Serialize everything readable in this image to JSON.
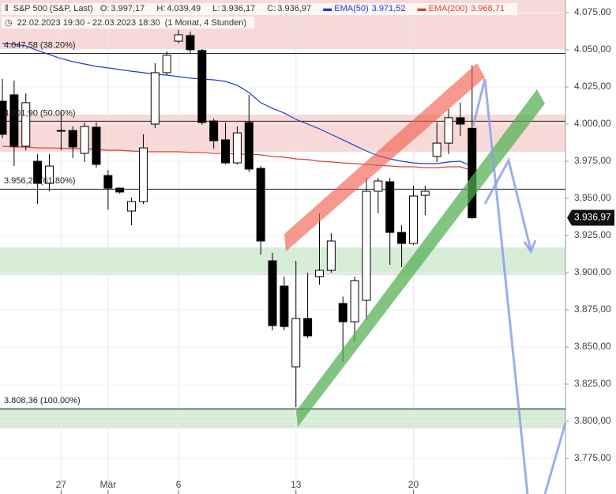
{
  "chart_data": {
    "type": "candlestick",
    "title": "S&P 500 (S&P, Last)",
    "ohlc_labels": [
      {
        "key": "O:",
        "text": "3.997,17"
      },
      {
        "key": "H:",
        "text": "4.039,49"
      },
      {
        "key": "L:",
        "text": "3.936,17"
      },
      {
        "key": "C:",
        "text": "3.936,97"
      }
    ],
    "subtitle": "22.02.2023 19:30 - 22.03.2023 18:30",
    "period": "(1 Monat, 4 Stunden)",
    "categories": [
      null,
      null,
      null,
      null,
      null,
      "27",
      null,
      null,
      null,
      "Mär",
      null,
      null,
      null,
      null,
      null,
      "6",
      null,
      null,
      null,
      null,
      null,
      null,
      null,
      null,
      null,
      "13",
      null,
      null,
      null,
      null,
      null,
      null,
      null,
      null,
      null,
      "20",
      null,
      null,
      null,
      null,
      null,
      null,
      null,
      null,
      null,
      null,
      null,
      null
    ],
    "open": [
      4015.4,
      4019.7,
      3985.1,
      3975.0,
      3960.1,
      3995.2,
      3995.7,
      3980.3,
      3997.9,
      3965.4,
      3956.9,
      3941.5,
      3947.9,
      4000.0,
      4034.6,
      4055.8,
      4059.6,
      4049.5,
      4002.1,
      3989.4,
      3973.9,
      4001.1,
      3970.2,
      3908.0,
      3891.0,
      3836.7,
      3869.2,
      3897.4,
      3901.6,
      3879.3,
      3867.0,
      3881.4,
      3954.8,
      3961.2,
      3927.1,
      3919.7,
      3952.1,
      3978.2,
      3987.2,
      4004.3,
      3997.17,
      null,
      null,
      null,
      null,
      null,
      null,
      null
    ],
    "high": [
      4030.3,
      4029.3,
      4020.7,
      3979.8,
      3979.8,
      4009.1,
      3998.4,
      4001.1,
      4001.1,
      3969.1,
      3957.5,
      3950.5,
      3993.1,
      4041.0,
      4048.9,
      4063.3,
      4062.2,
      4050.5,
      4003.7,
      4001.1,
      3998.4,
      4019.7,
      3971.8,
      3913.3,
      3897.4,
      3908.0,
      3900.0,
      3939.9,
      3926.6,
      3884.0,
      3897.4,
      3963.8,
      3963.8,
      3963.8,
      3931.9,
      3958.5,
      3958.5,
      4001.1,
      4010.1,
      4014.4,
      4039.49,
      null,
      null,
      null,
      null,
      null,
      null,
      null
    ],
    "low": [
      3990.4,
      3971.8,
      3982.4,
      3946.3,
      3954.8,
      3982.4,
      3977.1,
      3974.5,
      3970.7,
      3942.5,
      3953.2,
      3931.9,
      3946.3,
      3997.3,
      4033.0,
      4054.3,
      4047.3,
      3999.5,
      3983.5,
      3972.9,
      3972.9,
      3967.6,
      3912.2,
      3861.2,
      3861.2,
      3809.6,
      3855.9,
      3892.0,
      3900.0,
      3839.9,
      3853.7,
      3868.1,
      3939.9,
      3905.3,
      3903.7,
      3918.6,
      3938.8,
      3974.5,
      3979.8,
      3992.0,
      3936.17,
      null,
      null,
      null,
      null,
      null,
      null,
      null
    ],
    "close": [
      3993.1,
      3985.1,
      4014.4,
      3960.1,
      3971.8,
      3995.7,
      3984.6,
      3998.4,
      3972.9,
      3956.9,
      3954.3,
      3947.9,
      3984.0,
      4034.6,
      4046.3,
      4060.1,
      4050.0,
      4001.1,
      3988.8,
      3973.9,
      3994.1,
      3969.7,
      3921.3,
      3864.4,
      3863.8,
      3869.2,
      3857.5,
      3901.6,
      3921.3,
      3867.0,
      3894.7,
      3954.8,
      3961.7,
      3927.1,
      3919.7,
      3951.6,
      3954.8,
      3987.2,
      4004.3,
      4000.0,
      3936.97,
      null,
      null,
      null,
      null,
      null,
      null,
      null
    ],
    "up_color": "#ffffff",
    "down_color": "#000000",
    "series": [
      {
        "name": "EMA(50)",
        "color": "#1f3bd6",
        "value_label": "3.971,52",
        "values": [
          4054.3,
          4053.7,
          4052.7,
          4049.5,
          4046.8,
          4044.1,
          4042.0,
          4040.4,
          4038.8,
          4037.8,
          4036.7,
          4035.6,
          4034.6,
          4033.5,
          4033.0,
          4031.9,
          4030.9,
          4030.3,
          4029.8,
          4028.7,
          4026.1,
          4021.3,
          4014.4,
          4010.6,
          4007.4,
          4003.2,
          4000.0,
          3996.8,
          3993.1,
          3989.4,
          3985.6,
          3981.9,
          3978.7,
          3976.6,
          3975.0,
          3973.9,
          3973.4,
          3973.4,
          3974.5,
          3975.0,
          3971.52,
          null,
          null,
          null,
          null,
          null,
          null,
          null
        ]
      },
      {
        "name": "EMA(200)",
        "color": "#d9412f",
        "value_label": "3.968,71",
        "values": [
          3985.1,
          3984.6,
          3984.6,
          3984.0,
          3984.0,
          3983.8,
          3983.5,
          3983.5,
          3983.0,
          3982.4,
          3982.4,
          3981.9,
          3981.4,
          3981.4,
          3981.4,
          3981.4,
          3980.9,
          3980.9,
          3980.3,
          3980.3,
          3979.8,
          3979.8,
          3979.3,
          3978.2,
          3977.7,
          3976.6,
          3976.1,
          3975.0,
          3974.5,
          3973.9,
          3973.4,
          3972.9,
          3972.3,
          3971.8,
          3971.3,
          3971.3,
          3970.7,
          3970.7,
          3971.3,
          3971.3,
          3968.71,
          null,
          null,
          null,
          null,
          null,
          null,
          null
        ]
      }
    ],
    "ylim": [
      3751.1,
      4083.5
    ],
    "yticks": [
      {
        "value": 3775,
        "label": "3.775,00"
      },
      {
        "value": 3800,
        "label": "3.800,00"
      },
      {
        "value": 3825,
        "label": "3.825,00"
      },
      {
        "value": 3850,
        "label": "3.850,00"
      },
      {
        "value": 3875,
        "label": "3.875,00"
      },
      {
        "value": 3900,
        "label": "3.900,00"
      },
      {
        "value": 3925,
        "label": "3.925,00"
      },
      {
        "value": 3950,
        "label": "3.950,00"
      },
      {
        "value": 3975,
        "label": "3.975,00"
      },
      {
        "value": 4000,
        "label": "4.000,00"
      },
      {
        "value": 4025,
        "label": "4.025,00"
      },
      {
        "value": 4050,
        "label": "4.050,00"
      },
      {
        "value": 4075,
        "label": "4.075,00"
      }
    ],
    "grid": true,
    "levels": [
      {
        "value": 4047.58,
        "label": "4.047,58 (38.20%)"
      },
      {
        "value": 4001.9,
        "label": "4.001,90 (50.00%)"
      },
      {
        "value": 3956.21,
        "label": "3.956,21 (61.80%)"
      },
      {
        "value": 3808.36,
        "label": "3.808,36 (100.00%)"
      }
    ],
    "zones": [
      {
        "from": 4050.5,
        "to": 4083.5,
        "color": "rgba(214,70,60,0.2)"
      },
      {
        "from": 3981.4,
        "to": 4006.4,
        "color": "rgba(214,70,60,0.2)"
      },
      {
        "from": 3898.4,
        "to": 3917.0,
        "color": "rgba(70,170,70,0.22)"
      },
      {
        "from": 3795.3,
        "to": 3809.1,
        "color": "rgba(70,170,70,0.22)"
      }
    ],
    "last_price_label": "3.936,97"
  }
}
